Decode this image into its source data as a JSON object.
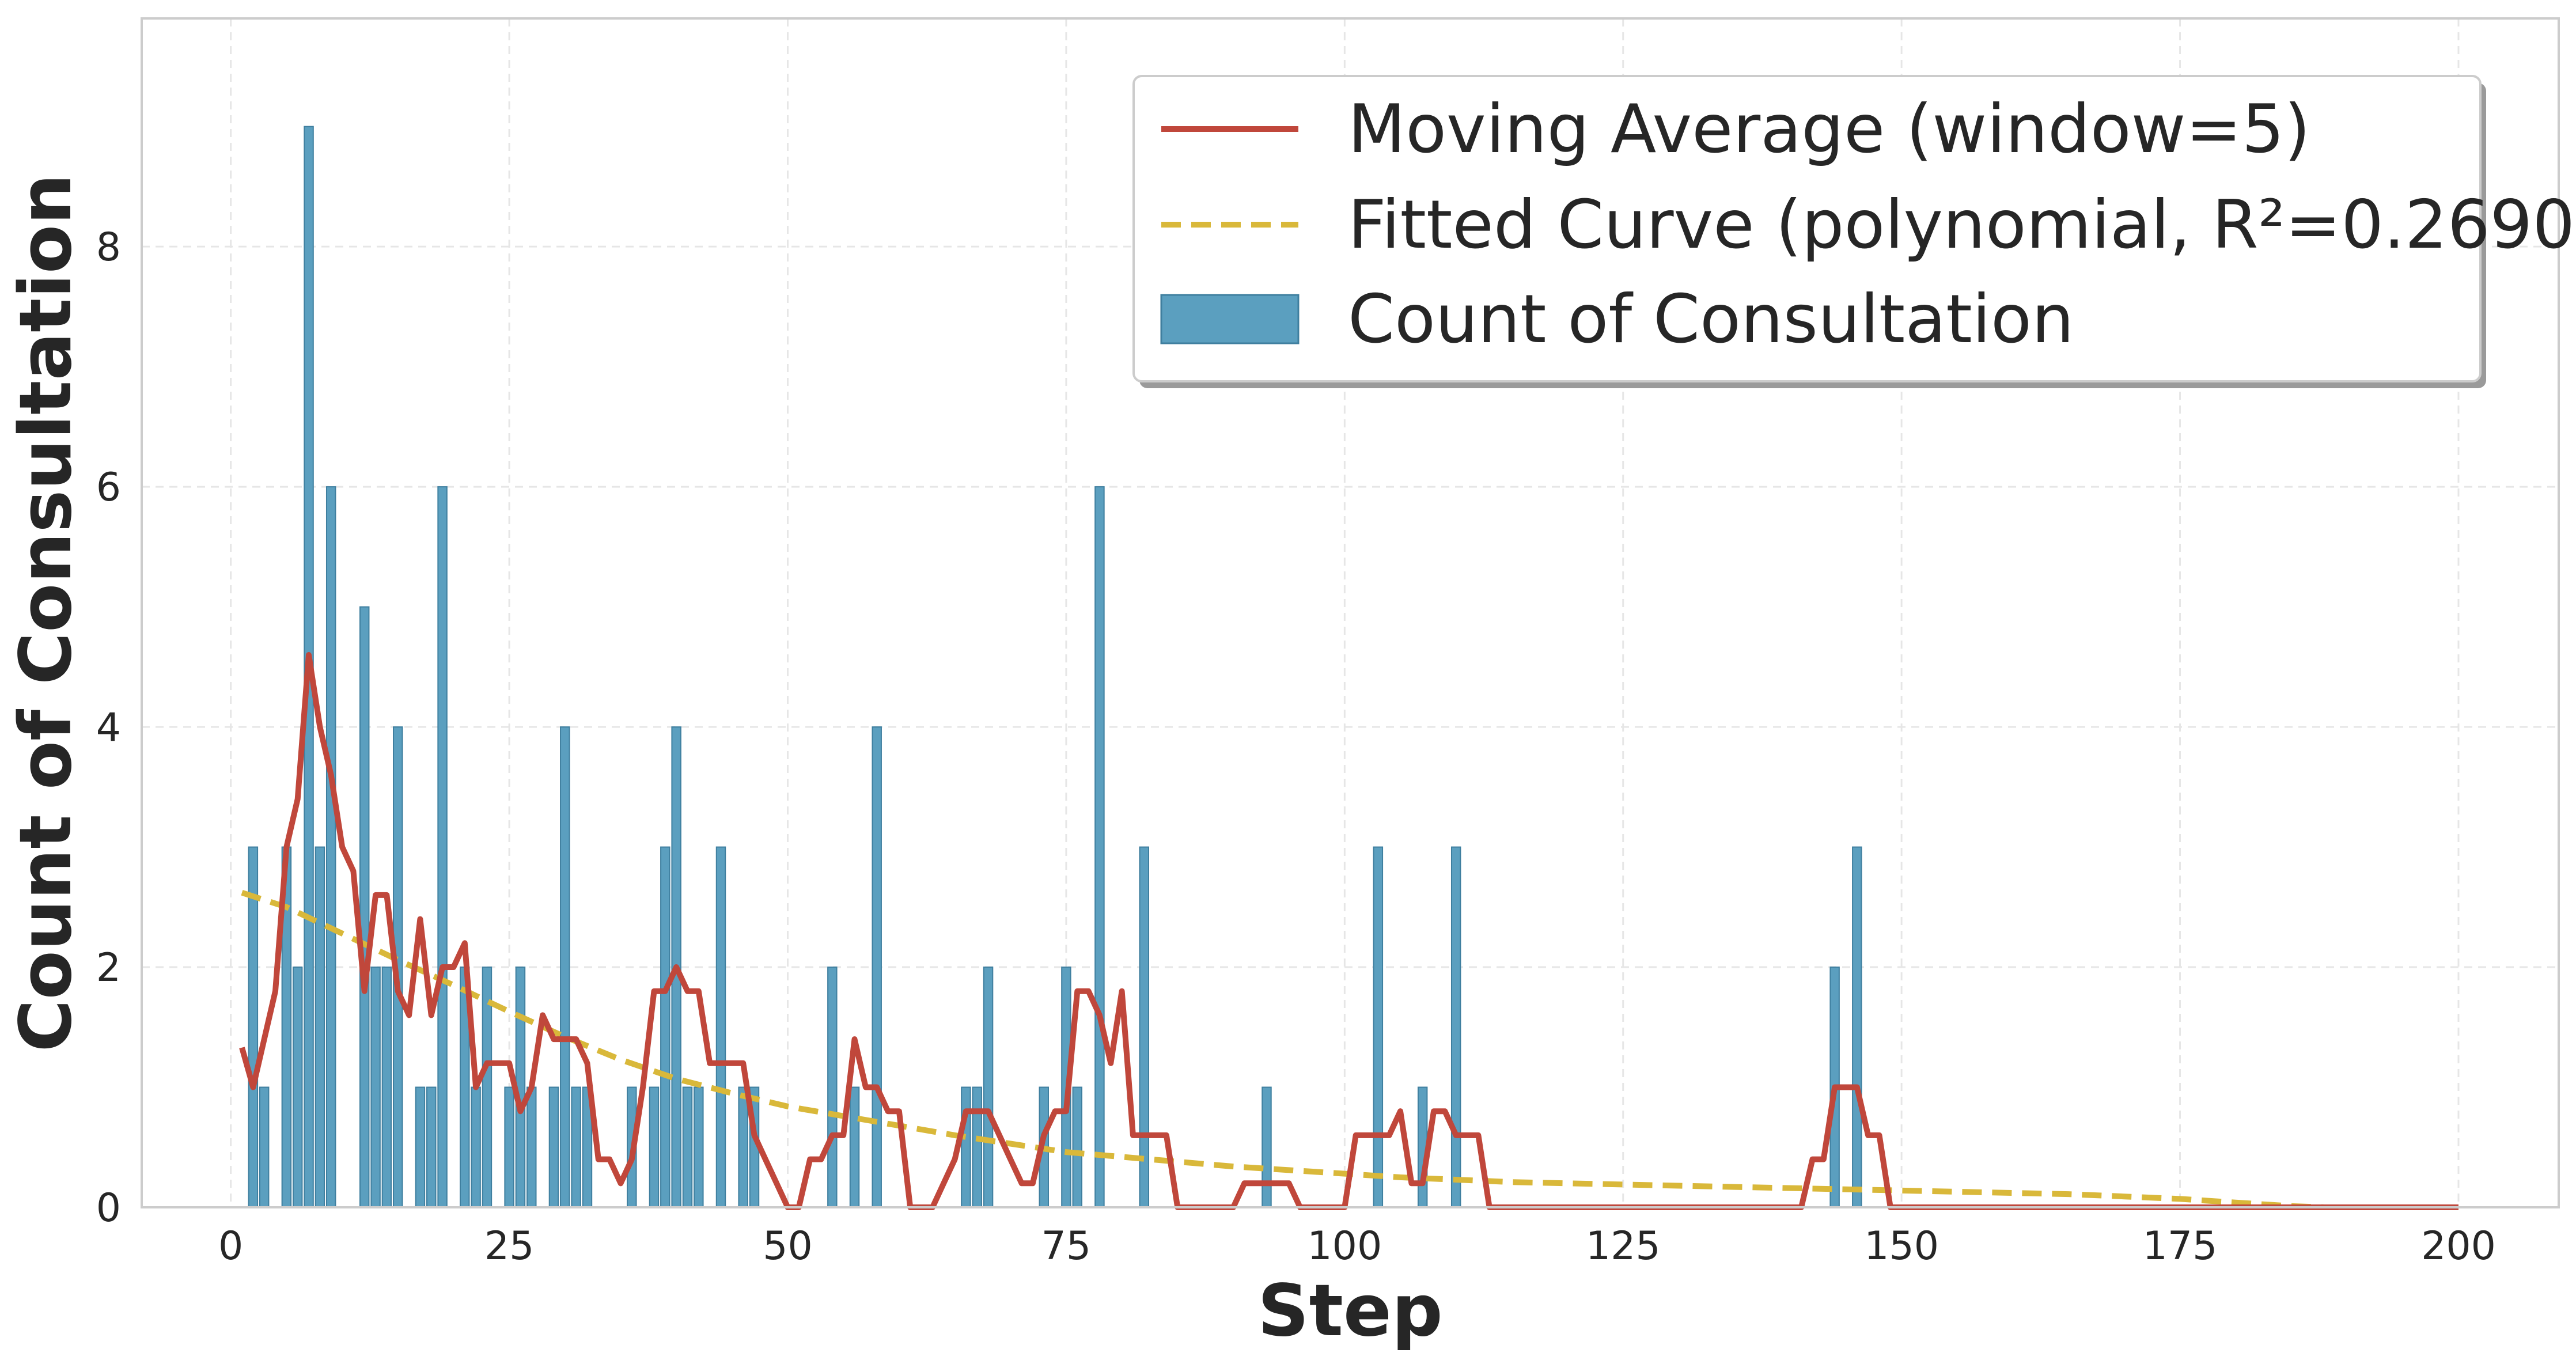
{
  "chart_data": {
    "type": "bar",
    "xlabel": "Step",
    "ylabel": "Count of Consultation",
    "xlim": [
      -8,
      209
    ],
    "ylim": [
      0,
      9.9
    ],
    "x_ticks": [
      0,
      25,
      50,
      75,
      100,
      125,
      150,
      175,
      200
    ],
    "y_ticks": [
      0,
      2,
      4,
      6,
      8
    ],
    "grid": true,
    "legend_position": "top-right",
    "colors": {
      "bars": "#5b9fbf",
      "bar_edge": "#3f7f9f",
      "moving_average": "#c0473b",
      "fitted_curve": "#d9b83a"
    },
    "legend": [
      {
        "label": "Moving Average (window=5)",
        "kind": "line"
      },
      {
        "label": "Fitted Curve (polynomial, R²=0.2690)",
        "kind": "dashed"
      },
      {
        "label": "Count of Consultation",
        "kind": "bar"
      }
    ],
    "series": [
      {
        "name": "Count of Consultation",
        "kind": "bar",
        "points": [
          [
            2,
            3
          ],
          [
            3,
            1
          ],
          [
            5,
            3
          ],
          [
            6,
            2
          ],
          [
            7,
            9
          ],
          [
            8,
            3
          ],
          [
            9,
            6
          ],
          [
            12,
            5
          ],
          [
            13,
            2
          ],
          [
            14,
            2
          ],
          [
            15,
            4
          ],
          [
            17,
            1
          ],
          [
            18,
            1
          ],
          [
            19,
            6
          ],
          [
            21,
            2
          ],
          [
            22,
            1
          ],
          [
            23,
            2
          ],
          [
            25,
            1
          ],
          [
            26,
            2
          ],
          [
            27,
            1
          ],
          [
            29,
            1
          ],
          [
            30,
            4
          ],
          [
            31,
            1
          ],
          [
            32,
            1
          ],
          [
            36,
            1
          ],
          [
            38,
            1
          ],
          [
            39,
            3
          ],
          [
            40,
            4
          ],
          [
            41,
            1
          ],
          [
            42,
            1
          ],
          [
            44,
            3
          ],
          [
            46,
            1
          ],
          [
            47,
            1
          ],
          [
            54,
            2
          ],
          [
            56,
            1
          ],
          [
            58,
            4
          ],
          [
            66,
            1
          ],
          [
            67,
            1
          ],
          [
            68,
            2
          ],
          [
            73,
            1
          ],
          [
            75,
            2
          ],
          [
            76,
            1
          ],
          [
            78,
            6
          ],
          [
            82,
            3
          ],
          [
            93,
            1
          ],
          [
            103,
            3
          ],
          [
            107,
            1
          ],
          [
            110,
            3
          ],
          [
            144,
            2
          ],
          [
            146,
            3
          ]
        ]
      },
      {
        "name": "Moving Average (window=5)",
        "kind": "line",
        "points": [
          [
            1,
            1.33
          ],
          [
            2,
            1.0
          ],
          [
            3,
            1.4
          ],
          [
            4,
            1.8
          ],
          [
            5,
            3.0
          ],
          [
            6,
            3.4
          ],
          [
            7,
            4.6
          ],
          [
            8,
            4.0
          ],
          [
            9,
            3.6
          ],
          [
            10,
            3.0
          ],
          [
            11,
            2.8
          ],
          [
            12,
            1.8
          ],
          [
            13,
            2.6
          ],
          [
            14,
            2.6
          ],
          [
            15,
            1.8
          ],
          [
            16,
            1.6
          ],
          [
            17,
            2.4
          ],
          [
            18,
            1.6
          ],
          [
            19,
            2.0
          ],
          [
            20,
            2.0
          ],
          [
            21,
            2.2
          ],
          [
            22,
            1.0
          ],
          [
            23,
            1.2
          ],
          [
            24,
            1.2
          ],
          [
            25,
            1.2
          ],
          [
            26,
            0.8
          ],
          [
            27,
            1.0
          ],
          [
            28,
            1.6
          ],
          [
            29,
            1.4
          ],
          [
            30,
            1.4
          ],
          [
            31,
            1.4
          ],
          [
            32,
            1.2
          ],
          [
            33,
            0.4
          ],
          [
            34,
            0.4
          ],
          [
            35,
            0.2
          ],
          [
            36,
            0.4
          ],
          [
            37,
            1.0
          ],
          [
            38,
            1.8
          ],
          [
            39,
            1.8
          ],
          [
            40,
            2.0
          ],
          [
            41,
            1.8
          ],
          [
            42,
            1.8
          ],
          [
            43,
            1.2
          ],
          [
            44,
            1.2
          ],
          [
            45,
            1.2
          ],
          [
            46,
            1.2
          ],
          [
            47,
            0.6
          ],
          [
            48,
            0.4
          ],
          [
            49,
            0.2
          ],
          [
            50,
            0.0
          ],
          [
            51,
            0.0
          ],
          [
            52,
            0.4
          ],
          [
            53,
            0.4
          ],
          [
            54,
            0.6
          ],
          [
            55,
            0.6
          ],
          [
            56,
            1.4
          ],
          [
            57,
            1.0
          ],
          [
            58,
            1.0
          ],
          [
            59,
            0.8
          ],
          [
            60,
            0.8
          ],
          [
            61,
            0.0
          ],
          [
            62,
            0.0
          ],
          [
            63,
            0.0
          ],
          [
            64,
            0.2
          ],
          [
            65,
            0.4
          ],
          [
            66,
            0.8
          ],
          [
            67,
            0.8
          ],
          [
            68,
            0.8
          ],
          [
            69,
            0.6
          ],
          [
            70,
            0.4
          ],
          [
            71,
            0.2
          ],
          [
            72,
            0.2
          ],
          [
            73,
            0.6
          ],
          [
            74,
            0.8
          ],
          [
            75,
            0.8
          ],
          [
            76,
            1.8
          ],
          [
            77,
            1.8
          ],
          [
            78,
            1.6
          ],
          [
            79,
            1.2
          ],
          [
            80,
            1.8
          ],
          [
            81,
            0.6
          ],
          [
            82,
            0.6
          ],
          [
            83,
            0.6
          ],
          [
            84,
            0.6
          ],
          [
            85,
            0.0
          ],
          [
            86,
            0.0
          ],
          [
            87,
            0.0
          ],
          [
            88,
            0.0
          ],
          [
            89,
            0.0
          ],
          [
            90,
            0.0
          ],
          [
            91,
            0.2
          ],
          [
            92,
            0.2
          ],
          [
            93,
            0.2
          ],
          [
            94,
            0.2
          ],
          [
            95,
            0.2
          ],
          [
            96,
            0.0
          ],
          [
            97,
            0.0
          ],
          [
            98,
            0.0
          ],
          [
            99,
            0.0
          ],
          [
            100,
            0.0
          ],
          [
            101,
            0.6
          ],
          [
            102,
            0.6
          ],
          [
            103,
            0.6
          ],
          [
            104,
            0.6
          ],
          [
            105,
            0.8
          ],
          [
            106,
            0.2
          ],
          [
            107,
            0.2
          ],
          [
            108,
            0.8
          ],
          [
            109,
            0.8
          ],
          [
            110,
            0.6
          ],
          [
            111,
            0.6
          ],
          [
            112,
            0.6
          ],
          [
            113,
            0.0
          ],
          [
            141,
            0.0
          ],
          [
            142,
            0.4
          ],
          [
            143,
            0.4
          ],
          [
            144,
            1.0
          ],
          [
            145,
            1.0
          ],
          [
            146,
            1.0
          ],
          [
            147,
            0.6
          ],
          [
            148,
            0.6
          ],
          [
            149,
            0.0
          ],
          [
            200,
            0.0
          ]
        ]
      },
      {
        "name": "Fitted Curve (polynomial, R²=0.2690)",
        "kind": "dashed",
        "points": [
          [
            1,
            2.62
          ],
          [
            5,
            2.5
          ],
          [
            10,
            2.28
          ],
          [
            15,
            2.06
          ],
          [
            20,
            1.85
          ],
          [
            25,
            1.63
          ],
          [
            30,
            1.42
          ],
          [
            35,
            1.23
          ],
          [
            40,
            1.07
          ],
          [
            45,
            0.95
          ],
          [
            50,
            0.84
          ],
          [
            55,
            0.76
          ],
          [
            60,
            0.68
          ],
          [
            65,
            0.6
          ],
          [
            70,
            0.53
          ],
          [
            75,
            0.46
          ],
          [
            80,
            0.42
          ],
          [
            85,
            0.38
          ],
          [
            90,
            0.34
          ],
          [
            95,
            0.31
          ],
          [
            100,
            0.28
          ],
          [
            105,
            0.25
          ],
          [
            110,
            0.23
          ],
          [
            115,
            0.21
          ],
          [
            120,
            0.2
          ],
          [
            125,
            0.19
          ],
          [
            130,
            0.18
          ],
          [
            135,
            0.17
          ],
          [
            140,
            0.16
          ],
          [
            145,
            0.15
          ],
          [
            150,
            0.14
          ],
          [
            155,
            0.13
          ],
          [
            160,
            0.12
          ],
          [
            165,
            0.11
          ],
          [
            170,
            0.09
          ],
          [
            175,
            0.07
          ],
          [
            180,
            0.04
          ],
          [
            185,
            0.01
          ],
          [
            188,
            0.0
          ]
        ]
      }
    ]
  }
}
